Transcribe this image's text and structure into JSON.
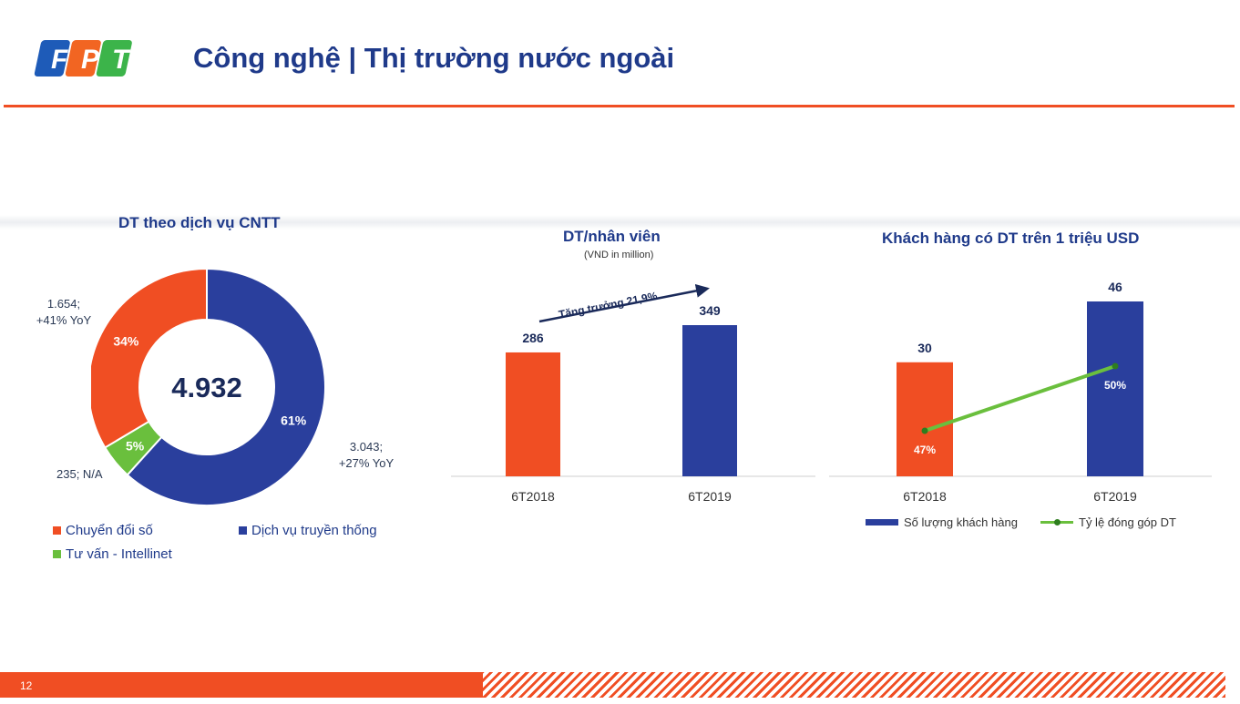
{
  "header": {
    "logo_text": "FPT",
    "title": "Công nghệ | Thị trường nước ngoài"
  },
  "colors": {
    "accent_orange": "#f04e23",
    "navy": "#1f3a8a",
    "green": "#6abf3d"
  },
  "chart_data": [
    {
      "type": "pie",
      "title": "DT theo dịch vụ CNTT",
      "center_label": "4.932",
      "slices": [
        {
          "name": "Chuyển đổi số",
          "value": 1654,
          "percent": 34,
          "pct_label": "34%",
          "color": "#f04e23",
          "callout_line1": "1.654;",
          "callout_line2": "+41% YoY"
        },
        {
          "name": "Dịch vụ truyền thống",
          "value": 3043,
          "percent": 61,
          "pct_label": "61%",
          "color": "#2a3f9d",
          "callout_line1": "3.043;",
          "callout_line2": "+27% YoY"
        },
        {
          "name": "Tư vấn - Intellinet",
          "value": 235,
          "percent": 5,
          "pct_label": "5%",
          "color": "#6abf3d",
          "callout_line1": "235; N/A",
          "callout_line2": ""
        }
      ]
    },
    {
      "type": "bar",
      "title": "DT/nhân viên",
      "subtitle": "(VND in million)",
      "categories": [
        "6T2018",
        "6T2019"
      ],
      "values": [
        286,
        349
      ],
      "value_labels": [
        "286",
        "349"
      ],
      "colors": [
        "#f04e23",
        "#2a3f9d"
      ],
      "annotation": "Tăng trưởng 21,9%"
    },
    {
      "type": "bar",
      "title": "Khách hàng có DT trên 1 triệu USD",
      "categories": [
        "6T2018",
        "6T2019"
      ],
      "series": [
        {
          "name": "Số lượng khách hàng",
          "kind": "bar",
          "values": [
            30,
            46
          ],
          "labels": [
            "30",
            "46"
          ],
          "colors": [
            "#f04e23",
            "#2a3f9d"
          ]
        },
        {
          "name": "Tỷ lệ đóng góp DT",
          "kind": "line",
          "values": [
            47,
            50
          ],
          "labels": [
            "47%",
            "50%"
          ],
          "color": "#6abf3d"
        }
      ]
    }
  ],
  "footer": {
    "page_number": "12"
  }
}
